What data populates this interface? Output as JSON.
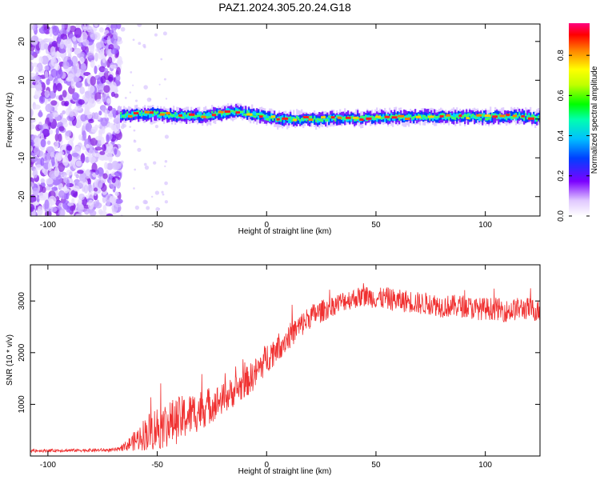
{
  "figure": {
    "title": "PAZ1.2024.305.20.24.G18"
  },
  "chart_data": [
    {
      "type": "heatmap",
      "xlabel": "Height of straight line (km)",
      "ylabel": "Frequency (Hz)",
      "xlim": [
        -108,
        125
      ],
      "ylim": [
        -25,
        24.5
      ],
      "xticks": [
        -100,
        -50,
        0,
        50,
        100
      ],
      "yticks": [
        -20,
        -10,
        0,
        10,
        20
      ],
      "xtick_labels": [
        "-100",
        "-50",
        "0",
        "50",
        "100"
      ],
      "ytick_labels": [
        "-20",
        "-10",
        "0",
        "10",
        "20"
      ],
      "noise_region_x": [
        -108,
        -67
      ],
      "ridge": {
        "x_start": -67,
        "x_end": 125,
        "path": [
          {
            "x": -67,
            "y": 1.0
          },
          {
            "x": -55,
            "y": 1.5
          },
          {
            "x": -45,
            "y": 1.0
          },
          {
            "x": -30,
            "y": 0.8
          },
          {
            "x": -15,
            "y": 2.0
          },
          {
            "x": -5,
            "y": 1.0
          },
          {
            "x": 5,
            "y": 0.0
          },
          {
            "x": 20,
            "y": 0.0
          },
          {
            "x": 40,
            "y": 0.2
          },
          {
            "x": 60,
            "y": 0.5
          },
          {
            "x": 80,
            "y": 0.6
          },
          {
            "x": 100,
            "y": 0.5
          },
          {
            "x": 115,
            "y": 0.8
          },
          {
            "x": 125,
            "y": 0.2
          }
        ]
      },
      "colorbar": {
        "label": "Normalized spectral amplitude",
        "range": [
          0,
          0.96
        ],
        "ticks": [
          0.0,
          0.2,
          0.4,
          0.6,
          0.8
        ],
        "tick_labels": [
          "0.0",
          "0.2",
          "0.4",
          "0.6",
          "0.8"
        ]
      },
      "colors": {
        "noise": "#8a2be2",
        "ridge_edge": "#0000ff",
        "ridge_core": "#ff0000"
      }
    },
    {
      "type": "line",
      "xlabel": "Height of straight line (km)",
      "ylabel": "SNR (10 * v/v)",
      "xlim": [
        -108,
        125
      ],
      "ylim": [
        0,
        3700
      ],
      "xticks": [
        -100,
        -50,
        0,
        50,
        100
      ],
      "yticks": [
        1000,
        2000,
        3000
      ],
      "xtick_labels": [
        "-100",
        "-50",
        "0",
        "50",
        "100"
      ],
      "ytick_labels": [
        "1000",
        "2000",
        "3000"
      ],
      "series": [
        {
          "color": "#f03030",
          "x": [
            -108,
            -90,
            -70,
            -67,
            -60,
            -55,
            -50,
            -45,
            -40,
            -35,
            -30,
            -25,
            -20,
            -15,
            -10,
            -5,
            0,
            5,
            10,
            15,
            20,
            25,
            30,
            35,
            40,
            45,
            50,
            55,
            60,
            65,
            70,
            75,
            80,
            85,
            90,
            95,
            100,
            105,
            110,
            115,
            120,
            125
          ],
          "y": [
            100,
            110,
            115,
            130,
            300,
            450,
            550,
            620,
            700,
            800,
            900,
            1000,
            1100,
            1250,
            1400,
            1600,
            1900,
            2100,
            2300,
            2500,
            2700,
            2800,
            2900,
            3000,
            3050,
            3100,
            3050,
            3050,
            3000,
            3000,
            2950,
            2950,
            2900,
            2900,
            2900,
            2850,
            2850,
            2850,
            2800,
            2850,
            2850,
            2800
          ],
          "noise_amp": [
            30,
            30,
            35,
            40,
            200,
            350,
            450,
            450,
            450,
            420,
            400,
            350,
            300,
            300,
            300,
            300,
            300,
            280,
            250,
            250,
            230,
            220,
            200,
            200,
            200,
            200,
            200,
            220,
            220,
            220,
            220,
            220,
            220,
            220,
            220,
            220,
            220,
            220,
            220,
            220,
            220,
            220
          ]
        }
      ]
    }
  ]
}
